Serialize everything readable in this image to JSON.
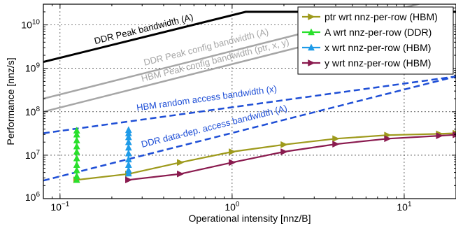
{
  "chart_data": {
    "type": "line",
    "xlabel": "Operational intensity [nnz/B]",
    "ylabel": "Performance [nnz/s]",
    "xscale": "log",
    "yscale": "log",
    "xlim": [
      0.08,
      20
    ],
    "ylim": [
      1000000,
      30000000000
    ],
    "grid": true,
    "legend_position": "top-right",
    "x_ticks": [
      {
        "value": 0.1,
        "base": "10",
        "exp": "−1"
      },
      {
        "value": 1,
        "base": "10",
        "exp": "0"
      },
      {
        "value": 10,
        "base": "10",
        "exp": "1"
      }
    ],
    "y_ticks": [
      {
        "value": 1000000,
        "base": "10",
        "exp": "6"
      },
      {
        "value": 10000000,
        "base": "10",
        "exp": "7"
      },
      {
        "value": 100000000,
        "base": "10",
        "exp": "8"
      },
      {
        "value": 1000000000,
        "base": "10",
        "exp": "9"
      },
      {
        "value": 10000000000,
        "base": "10",
        "exp": "10"
      }
    ],
    "rooflines": [
      {
        "label": "DDR Peak bandwidth (A)",
        "color": "#000000",
        "dashed": false,
        "width": 3,
        "points": [
          [
            0.08,
            1400000000
          ],
          [
            1.2,
            20000000000
          ],
          [
            20,
            20000000000
          ]
        ],
        "label_x": 0.16,
        "label_y": 3600000000
      },
      {
        "label": "DDR Peak config bandwidth (A)",
        "color": "#a6a6a6",
        "dashed": false,
        "width": 2.5,
        "points": [
          [
            0.08,
            200000000
          ],
          [
            20,
            50000000000
          ]
        ],
        "label_x": 0.31,
        "label_y": 1150000000
      },
      {
        "label": "HBM Peak config bandwidth (ptr, x, y)",
        "color": "#a6a6a6",
        "dashed": false,
        "width": 2.5,
        "points": [
          [
            0.08,
            100000000
          ],
          [
            20,
            25000000000
          ]
        ],
        "label_x": 0.3,
        "label_y": 490000000
      },
      {
        "label": "HBM random access bandwidth (x)",
        "color": "#1f4fd6",
        "dashed": true,
        "width": 2.5,
        "points": [
          [
            0.08,
            32000000
          ],
          [
            20,
            650000000
          ]
        ],
        "label_x": 0.28,
        "label_y": 105000000
      },
      {
        "label": "DDR data-dep. access bandwidth (A)",
        "color": "#1f4fd6",
        "dashed": true,
        "width": 2.5,
        "points": [
          [
            0.08,
            2600000
          ],
          [
            20,
            650000000
          ]
        ],
        "label_x": 0.3,
        "label_y": 15000000
      }
    ],
    "series": [
      {
        "name": "ptr wrt nnz-per-row (HBM)",
        "color": "#9e9a1c",
        "marker": "right",
        "x": [
          0.125,
          0.25,
          0.5,
          1,
          2,
          4,
          8,
          16,
          20
        ],
        "y": [
          2700000,
          3700000,
          6800000,
          12000000,
          17500000,
          24000000,
          29000000,
          31000000,
          32000000
        ]
      },
      {
        "name": "A wrt nnz-per-row (DDR)",
        "color": "#29e02c",
        "marker": "up",
        "x": [
          0.125,
          0.125,
          0.125,
          0.125,
          0.125,
          0.125,
          0.125,
          0.125,
          0.125,
          0.125
        ],
        "y": [
          2700000,
          3300000,
          4500000,
          6000000,
          8500000,
          12000000,
          16000000,
          22000000,
          30000000,
          37000000
        ]
      },
      {
        "name": "x wrt nnz-per-row (HBM)",
        "color": "#1e9be8",
        "marker": "up",
        "x": [
          0.25,
          0.25,
          0.25,
          0.25,
          0.25,
          0.25,
          0.25,
          0.25,
          0.25,
          0.25
        ],
        "y": [
          3800000,
          4500000,
          6000000,
          8000000,
          11000000,
          15000000,
          20000000,
          26000000,
          32000000,
          38000000
        ]
      },
      {
        "name": "y wrt nnz-per-row (HBM)",
        "color": "#8a1b4f",
        "marker": "right",
        "x": [
          0.25,
          0.5,
          1,
          2,
          4,
          8,
          16,
          20
        ],
        "y": [
          2700000,
          3700000,
          6800000,
          12000000,
          18000000,
          24000000,
          28000000,
          29500000
        ]
      }
    ]
  }
}
